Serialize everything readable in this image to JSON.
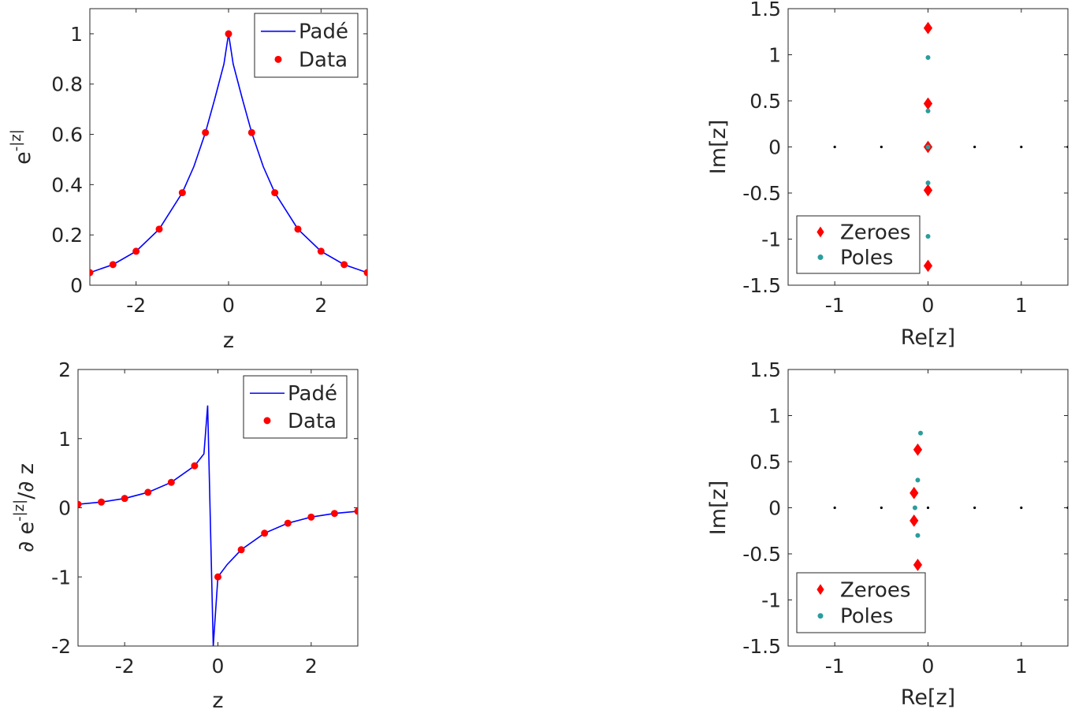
{
  "chart_data": [
    {
      "type": "line",
      "xlabel": "z",
      "ylabel": "e^{-|z|}",
      "xlim": [
        -3,
        3
      ],
      "ylim": [
        0,
        1.1
      ],
      "xticks": [
        -2,
        0,
        2
      ],
      "xtick_labels": [
        "-2",
        "0",
        "2"
      ],
      "yticks": [
        0,
        0.2,
        0.4,
        0.6,
        0.8,
        1
      ],
      "ytick_labels": [
        "0",
        "0.2",
        "0.4",
        "0.6",
        "0.8",
        "1"
      ],
      "grid": false,
      "legend_position": "top-right",
      "series": [
        {
          "name": "Padé",
          "style": "line",
          "color": "#0000ff",
          "x": [
            -3,
            -2.5,
            -2,
            -1.5,
            -1,
            -0.75,
            -0.5,
            -0.3,
            -0.1,
            0,
            0.1,
            0.3,
            0.5,
            0.75,
            1,
            1.5,
            2,
            2.5,
            3
          ],
          "y": [
            0.05,
            0.082,
            0.135,
            0.223,
            0.368,
            0.472,
            0.607,
            0.74,
            0.88,
            1.0,
            0.88,
            0.74,
            0.607,
            0.472,
            0.368,
            0.223,
            0.135,
            0.082,
            0.05
          ]
        },
        {
          "name": "Data",
          "style": "marker",
          "color": "#ff0000",
          "x": [
            -3,
            -2.5,
            -2,
            -1.5,
            -1,
            -0.5,
            0,
            0.5,
            1,
            1.5,
            2,
            2.5,
            3
          ],
          "y": [
            0.05,
            0.082,
            0.135,
            0.223,
            0.368,
            0.607,
            1.0,
            0.607,
            0.368,
            0.223,
            0.135,
            0.082,
            0.05
          ]
        }
      ]
    },
    {
      "type": "scatter",
      "xlabel": "Re[z]",
      "ylabel": "Im[z]",
      "xlim": [
        -1.5,
        1.5
      ],
      "ylim": [
        -1.5,
        1.5
      ],
      "xticks": [
        -1,
        0,
        1
      ],
      "xtick_labels": [
        "-1",
        "0",
        "1"
      ],
      "yticks": [
        -1.5,
        -1,
        -0.5,
        0,
        0.5,
        1,
        1.5
      ],
      "ytick_labels": [
        "-1.5",
        "-1",
        "-0.5",
        "0",
        "0.5",
        "1",
        "1.5"
      ],
      "grid": false,
      "legend_position": "bottom-left",
      "reference_points": {
        "color": "#000000",
        "x": [
          -1,
          -0.5,
          0,
          0.5,
          1,
          1.5
        ],
        "y": [
          0,
          0,
          0,
          0,
          0,
          0
        ]
      },
      "series": [
        {
          "name": "Zeroes",
          "marker": "diamond",
          "color": "#ff0000",
          "x": [
            0,
            0,
            0,
            0,
            0
          ],
          "y": [
            1.29,
            0.47,
            0,
            -0.47,
            -1.29
          ]
        },
        {
          "name": "Poles",
          "marker": "circle",
          "color": "#2a9d9d",
          "x": [
            0,
            0,
            0,
            0,
            0
          ],
          "y": [
            0.97,
            0.39,
            -0.39,
            -0.97,
            0
          ]
        }
      ]
    },
    {
      "type": "line",
      "xlabel": "z",
      "ylabel": "∂ e^{-|z|}/∂ z",
      "xlim": [
        -3,
        3
      ],
      "ylim": [
        -2,
        2
      ],
      "xticks": [
        -2,
        0,
        2
      ],
      "xtick_labels": [
        "-2",
        "0",
        "2"
      ],
      "yticks": [
        -2,
        -1,
        0,
        1,
        2
      ],
      "ytick_labels": [
        "-2",
        "-1",
        "0",
        "1",
        "2"
      ],
      "grid": false,
      "legend_position": "top-right",
      "series": [
        {
          "name": "Padé",
          "style": "line",
          "color": "#0000ff",
          "x": [
            -3,
            -2.5,
            -2,
            -1.5,
            -1,
            -0.5,
            -0.3,
            -0.22,
            -0.1,
            0,
            0.2,
            0.5,
            1,
            1.5,
            2,
            2.5,
            3
          ],
          "y": [
            0.05,
            0.082,
            0.135,
            0.223,
            0.368,
            0.607,
            0.78,
            1.48,
            -2.0,
            -1.0,
            -0.82,
            -0.607,
            -0.368,
            -0.223,
            -0.135,
            -0.082,
            -0.05
          ]
        },
        {
          "name": "Data",
          "style": "marker",
          "color": "#ff0000",
          "x": [
            -3,
            -2.5,
            -2,
            -1.5,
            -1,
            -0.5,
            0,
            0.5,
            1,
            1.5,
            2,
            2.5,
            3
          ],
          "y": [
            0.05,
            0.082,
            0.135,
            0.223,
            0.368,
            0.607,
            -1.0,
            -0.607,
            -0.368,
            -0.223,
            -0.135,
            -0.082,
            -0.05
          ]
        }
      ]
    },
    {
      "type": "scatter",
      "xlabel": "Re[z]",
      "ylabel": "Im[z]",
      "xlim": [
        -1.5,
        1.5
      ],
      "ylim": [
        -1.5,
        1.5
      ],
      "xticks": [
        -1,
        0,
        1
      ],
      "xtick_labels": [
        "-1",
        "0",
        "1"
      ],
      "yticks": [
        -1.5,
        -1,
        -0.5,
        0,
        0.5,
        1,
        1.5
      ],
      "ytick_labels": [
        "-1.5",
        "-1",
        "-0.5",
        "0",
        "0.5",
        "1",
        "1.5"
      ],
      "grid": false,
      "legend_position": "bottom-left",
      "reference_points": {
        "color": "#000000",
        "x": [
          -1,
          -0.5,
          0,
          0.5,
          1,
          1.5
        ],
        "y": [
          0,
          0,
          0,
          0,
          0,
          0
        ]
      },
      "series": [
        {
          "name": "Zeroes",
          "marker": "diamond",
          "color": "#ff0000",
          "x": [
            -0.11,
            -0.15,
            -0.15,
            -0.11
          ],
          "y": [
            0.63,
            0.16,
            -0.14,
            -0.62
          ]
        },
        {
          "name": "Poles",
          "marker": "circle",
          "color": "#2a9d9d",
          "x": [
            -0.08,
            -0.11,
            -0.14,
            -0.11
          ],
          "y": [
            0.81,
            0.3,
            0.0,
            -0.3
          ]
        }
      ]
    }
  ]
}
